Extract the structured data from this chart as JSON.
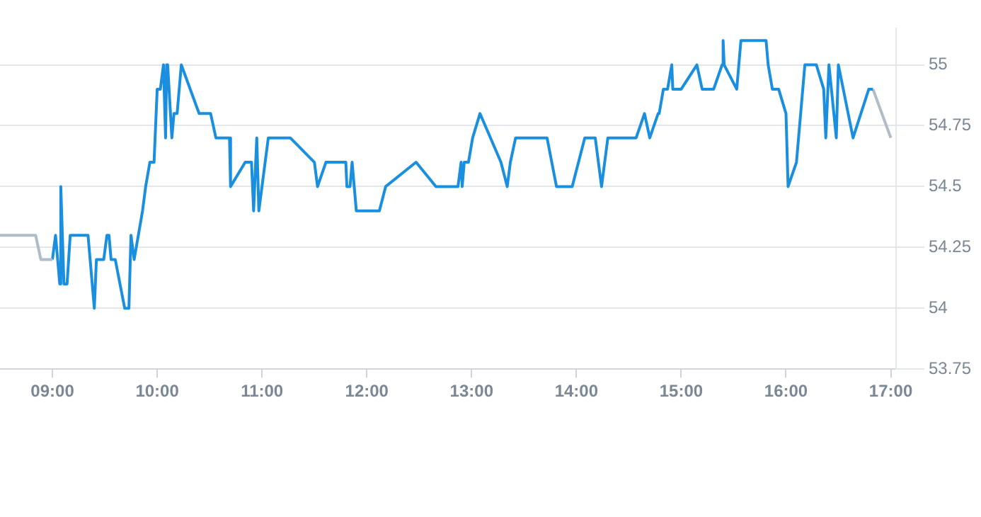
{
  "chart_data": {
    "type": "line",
    "grid": "y",
    "legend": false,
    "marker": "none",
    "line_style": "solid",
    "xlim": [
      8.5,
      17.05
    ],
    "xticks": [
      {
        "value": 9,
        "label": "09:00"
      },
      {
        "value": 10,
        "label": "10:00"
      },
      {
        "value": 11,
        "label": "11:00"
      },
      {
        "value": 12,
        "label": "12:00"
      },
      {
        "value": 13,
        "label": "13:00"
      },
      {
        "value": 14,
        "label": "14:00"
      },
      {
        "value": 15,
        "label": "15:00"
      },
      {
        "value": 16,
        "label": "16:00"
      },
      {
        "value": 17,
        "label": "17:00"
      }
    ],
    "ylim": [
      53.75,
      55.15
    ],
    "yticks": [
      53.75,
      54,
      54.25,
      54.5,
      54.75,
      55
    ],
    "series": [
      {
        "color": "#b0bcc8",
        "x": [
          8.5,
          8.84,
          8.89,
          9.0
        ],
        "values": [
          54.3,
          54.3,
          54.2,
          54.2
        ]
      },
      {
        "color": "#1a8fe0",
        "x": [
          9.0,
          9.03,
          9.04,
          9.07,
          9.08,
          9.11,
          9.14,
          9.17,
          9.34,
          9.4,
          9.42,
          9.49,
          9.52,
          9.54,
          9.56,
          9.6,
          9.69,
          9.73,
          9.75,
          9.78,
          9.86,
          9.89,
          9.93,
          9.97,
          10.0,
          10.03,
          10.06,
          10.08,
          10.09,
          10.1,
          10.14,
          10.16,
          10.19,
          10.23,
          10.4,
          10.51,
          10.56,
          10.69,
          10.7,
          10.84,
          10.9,
          10.92,
          10.95,
          10.97,
          11.06,
          11.27,
          11.5,
          11.53,
          11.61,
          11.8,
          11.81,
          11.84,
          11.86,
          11.9,
          12.12,
          12.18,
          12.47,
          12.66,
          12.87,
          12.9,
          12.91,
          12.93,
          12.97,
          13.01,
          13.08,
          13.28,
          13.34,
          13.37,
          13.42,
          13.72,
          13.81,
          13.96,
          14.08,
          14.18,
          14.24,
          14.3,
          14.57,
          14.65,
          14.7,
          14.78,
          14.79,
          14.83,
          14.87,
          14.91,
          14.92,
          15.0,
          15.15,
          15.2,
          15.31,
          15.39,
          15.4,
          15.41,
          15.53,
          15.57,
          15.81,
          15.83,
          15.87,
          15.93,
          16.0,
          16.02,
          16.1,
          16.18,
          16.29,
          16.36,
          16.38,
          16.41,
          16.48,
          16.5,
          16.64,
          16.79,
          16.83
        ],
        "values": [
          54.2,
          54.3,
          54.3,
          54.1,
          54.5,
          54.1,
          54.1,
          54.3,
          54.3,
          54.0,
          54.2,
          54.2,
          54.3,
          54.3,
          54.2,
          54.2,
          54.0,
          54.0,
          54.3,
          54.2,
          54.4,
          54.5,
          54.6,
          54.6,
          54.9,
          54.9,
          55.0,
          54.7,
          55.0,
          55.0,
          54.7,
          54.8,
          54.8,
          55.0,
          54.8,
          54.8,
          54.7,
          54.7,
          54.5,
          54.6,
          54.6,
          54.4,
          54.7,
          54.4,
          54.7,
          54.7,
          54.6,
          54.5,
          54.6,
          54.6,
          54.5,
          54.5,
          54.6,
          54.4,
          54.4,
          54.5,
          54.6,
          54.5,
          54.5,
          54.6,
          54.5,
          54.6,
          54.6,
          54.7,
          54.8,
          54.6,
          54.5,
          54.6,
          54.7,
          54.7,
          54.5,
          54.5,
          54.7,
          54.7,
          54.5,
          54.7,
          54.7,
          54.8,
          54.7,
          54.8,
          54.8,
          54.9,
          54.9,
          55.0,
          54.9,
          54.9,
          55.0,
          54.9,
          54.9,
          55.0,
          55.1,
          55.0,
          54.9,
          55.1,
          55.1,
          55.0,
          54.9,
          54.9,
          54.8,
          54.5,
          54.6,
          55.0,
          55.0,
          54.9,
          54.7,
          55.0,
          54.7,
          55.0,
          54.7,
          54.9,
          54.9
        ]
      },
      {
        "color": "#b0bcc8",
        "x": [
          16.83,
          17.0
        ],
        "values": [
          54.9,
          54.7
        ]
      }
    ]
  }
}
